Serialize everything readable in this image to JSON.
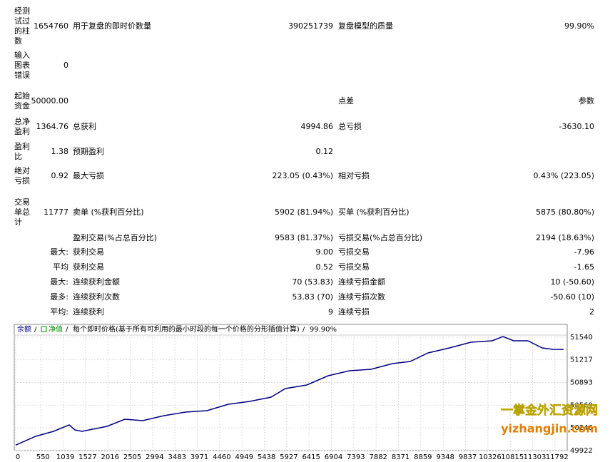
{
  "report": {
    "rows": [
      {
        "label": "经测试过的柱数",
        "value": "1654760",
        "label2": "用于复盘的即时价数量",
        "value2": "390251739",
        "label3": "复盘模型的质量",
        "value3": "99.90%"
      },
      {
        "label": "输入图表错误",
        "value": "0"
      },
      {
        "label": "起始资金",
        "value": "50000.00",
        "label3": "点差",
        "value3": "参数"
      },
      {
        "label": "总净盈利",
        "value": "1364.76",
        "label2": "总获利",
        "value2": "4994.86",
        "label3": "总亏损",
        "value3": "-3630.10"
      },
      {
        "label": "盈利比",
        "value": "1.38",
        "label2": "预期盈利",
        "value2": "0.12"
      },
      {
        "label": "绝对亏损",
        "value": "0.92",
        "label2": "最大亏损",
        "value2": "223.05 (0.43%)",
        "label3": "相对亏损",
        "value3": "0.43% (223.05)"
      },
      {
        "label": "交易单总计",
        "value": "11777",
        "label2": "卖单 (%获利百分比)",
        "value2": "5902 (81.94%)",
        "label3": "买单 (%获利百分比)",
        "value3": "5875 (80.80%)"
      },
      {
        "label2": "盈利交易(%占总百分比)",
        "value2": "9583 (81.37%)",
        "label3": "亏损交易(%占总百分比)",
        "value3": "2194 (18.63%)"
      },
      {
        "value": "最大:",
        "label2": "获利交易",
        "value2": "9.00",
        "label3": "亏损交易",
        "value3": "-7.96"
      },
      {
        "value": "平均",
        "label2": "获利交易",
        "value2": "0.52",
        "label3": "亏损交易",
        "value3": "-1.65"
      },
      {
        "value": "最大:",
        "label2": "连续获利金额",
        "value2": "70 (53.83)",
        "label3": "连续亏损金额",
        "value3": "10 (-50.60)"
      },
      {
        "value": "最多:",
        "label2": "连续获利次数",
        "value2": "53.83 (70)",
        "label3": "连续亏损次数",
        "value3": "-50.60 (10)"
      },
      {
        "value": "平均:",
        "label2": "连续获利",
        "value2": "9",
        "label3": "连续亏损",
        "value3": "2"
      }
    ]
  },
  "chart_data": {
    "type": "line",
    "header_items": [
      "净值",
      "每个即时价格(基于所有可利用的最小时段的每一个价格的分形插值计算)",
      "99.90%"
    ],
    "x": [
      0,
      437,
      827,
      1170,
      1295,
      1451,
      1685,
      1997,
      2387,
      2777,
      3245,
      3713,
      4181,
      4649,
      5117,
      5585,
      5897,
      6365,
      6833,
      7301,
      7769,
      8237,
      8627,
      9017,
      9485,
      9953,
      10421,
      10655,
      10889,
      11201,
      11513,
      11747,
      11981
    ],
    "series": [
      {
        "name": "余额",
        "color": "#000080",
        "values": [
          50000,
          50125,
          50197,
          50288,
          50217,
          50197,
          50227,
          50268,
          50369,
          50349,
          50420,
          50471,
          50491,
          50583,
          50624,
          50685,
          50807,
          50858,
          50990,
          51061,
          51081,
          51163,
          51193,
          51315,
          51386,
          51468,
          51488,
          51549,
          51488,
          51488,
          51386,
          51366,
          51365
        ]
      }
    ],
    "xlim": [
      0,
      12060
    ],
    "ylim": [
      49922,
      51722
    ],
    "xticks": [
      0,
      550,
      1039,
      1527,
      2016,
      2505,
      2994,
      3483,
      3971,
      4460,
      4949,
      5438,
      5927,
      6415,
      6904,
      7393,
      7882,
      8371,
      8859,
      9348,
      9837,
      10326,
      10815,
      11303,
      11792
    ],
    "yticks": [
      49922,
      50246,
      50569,
      50893,
      51217,
      51540
    ],
    "grid": true,
    "watermark": [
      "一掌金外汇资源网",
      "yizhangjin.com"
    ]
  }
}
